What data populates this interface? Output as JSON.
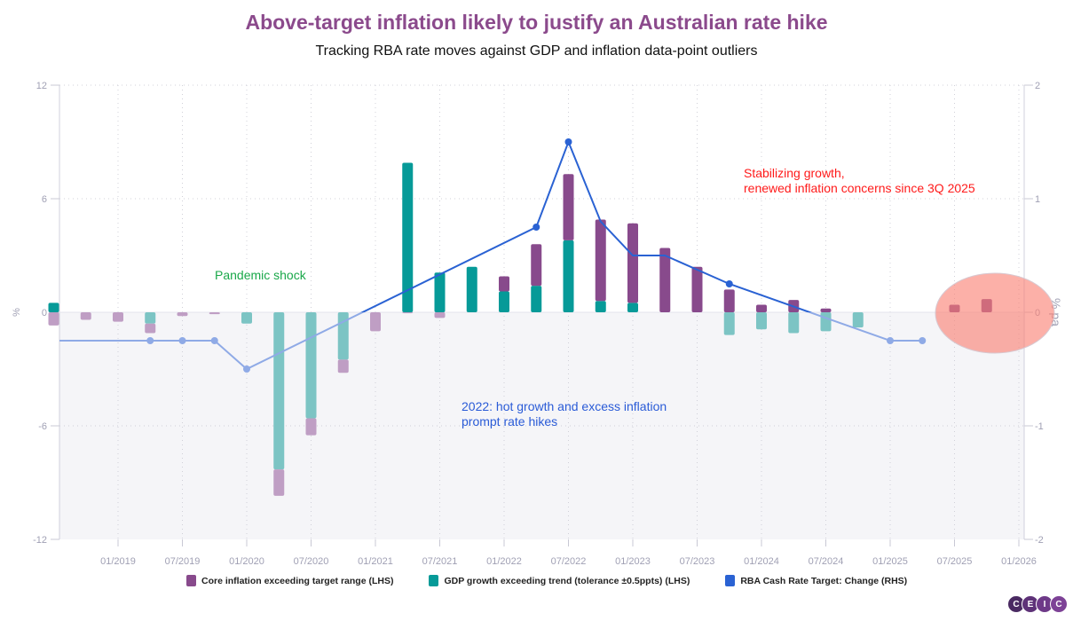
{
  "chart_data": {
    "type": "bar",
    "title": "Above-target inflation likely to justify an Australian rate hike",
    "subtitle": "Tracking RBA rate moves against GDP and inflation data-point outliers",
    "ylabel_left": "%",
    "ylabel_right": "% pa",
    "ylim_left": [
      -12,
      12
    ],
    "ylim_right": [
      -2,
      2
    ],
    "yticks_left": [
      "12",
      "6",
      "0",
      "-6",
      "-12"
    ],
    "yticks_right": [
      "2",
      "1",
      "0",
      "-1",
      "-2"
    ],
    "xticks": [
      "01/2019",
      "07/2019",
      "01/2020",
      "07/2020",
      "01/2021",
      "07/2021",
      "01/2022",
      "07/2022",
      "01/2023",
      "07/2023",
      "01/2024",
      "07/2024",
      "01/2025",
      "07/2025",
      "01/2026"
    ],
    "grid": true,
    "legend_placement": "bottom",
    "stacked": true,
    "categories": [
      "2018-09",
      "2018-12",
      "2019-03",
      "2019-06",
      "2019-09",
      "2019-12",
      "2020-03",
      "2020-06",
      "2020-09",
      "2020-12",
      "2021-03",
      "2021-06",
      "2021-09",
      "2021-12",
      "2022-03",
      "2022-06",
      "2022-09",
      "2022-12",
      "2023-03",
      "2023-06",
      "2023-09",
      "2023-12",
      "2024-03",
      "2024-06",
      "2024-09",
      "2024-12",
      "2025-03",
      "2025-06",
      "2025-09",
      "2025-12"
    ],
    "series": [
      {
        "name": "GDP growth exceeding trend (tolerance ±0.5ppts) (LHS)",
        "color": "#069a98",
        "color_negative": "#7cc4c4",
        "axis": "left",
        "values": [
          0.5,
          0,
          0,
          -0.6,
          0,
          0,
          -0.6,
          -8.3,
          -5.6,
          -2.5,
          0,
          7.9,
          2.1,
          2.4,
          1.1,
          1.4,
          3.8,
          0.6,
          0.5,
          0,
          0,
          -1.2,
          -0.9,
          -1.1,
          -1.0,
          -0.8,
          0,
          0,
          0,
          0
        ]
      },
      {
        "name": "Core inflation exceeding target range (LHS)",
        "color": "#884a8c",
        "color_negative": "#bf9ec4",
        "axis": "left",
        "values": [
          -0.7,
          -0.4,
          -0.5,
          -0.5,
          -0.2,
          -0.1,
          0,
          -1.4,
          -0.9,
          -0.7,
          -1.0,
          -0.05,
          -0.3,
          0,
          0.8,
          2.2,
          3.5,
          4.3,
          4.2,
          3.4,
          2.4,
          1.2,
          0.4,
          0.65,
          0.2,
          0,
          0,
          0,
          0.4,
          0.7
        ]
      },
      {
        "name": "RBA Cash Rate Target: Change (RHS)",
        "type": "line",
        "color": "#2a62d3",
        "color_negative": "#8faae6",
        "axis": "right",
        "points": [
          {
            "x": "2018-09",
            "y": -0.25,
            "marker": false
          },
          {
            "x": "2019-06",
            "y": -0.25,
            "marker": true
          },
          {
            "x": "2019-09",
            "y": -0.25,
            "marker": true
          },
          {
            "x": "2019-12",
            "y": -0.25,
            "marker": true
          },
          {
            "x": "2020-03",
            "y": -0.5,
            "marker": true
          },
          {
            "x": "2022-06",
            "y": 0.75,
            "marker": true
          },
          {
            "x": "2022-09",
            "y": 1.5,
            "marker": true
          },
          {
            "x": "2022-12",
            "y": 0.8,
            "marker": false
          },
          {
            "x": "2023-03",
            "y": 0.5,
            "marker": false
          },
          {
            "x": "2023-06",
            "y": 0.5,
            "marker": false
          },
          {
            "x": "2023-12",
            "y": 0.25,
            "marker": true
          },
          {
            "x": "2025-03",
            "y": -0.25,
            "marker": true
          },
          {
            "x": "2025-06",
            "y": -0.25,
            "marker": true
          }
        ]
      }
    ],
    "annotations": [
      {
        "text": "Pandemic shock",
        "color": "#1aa84a"
      },
      {
        "text": "2022: hot growth and excess inflation\nprompt rate hikes",
        "color": "#2a5bd7"
      },
      {
        "text": "Stabilizing growth,\nrenewed inflation concerns since 3Q 2025",
        "color": "#ff1a1a"
      }
    ],
    "highlight_color": "#fa8072"
  },
  "legend": [
    {
      "label": "Core inflation exceeding target range (LHS)",
      "color": "#884a8c"
    },
    {
      "label": "GDP growth exceeding trend (tolerance ±0.5ppts) (LHS)",
      "color": "#069a98"
    },
    {
      "label": "RBA Cash Rate Target: Change (RHS)",
      "color": "#2a62d3"
    }
  ],
  "logo": {
    "letters": [
      "C",
      "E",
      "I",
      "C"
    ],
    "color": "#5a2e6e"
  }
}
